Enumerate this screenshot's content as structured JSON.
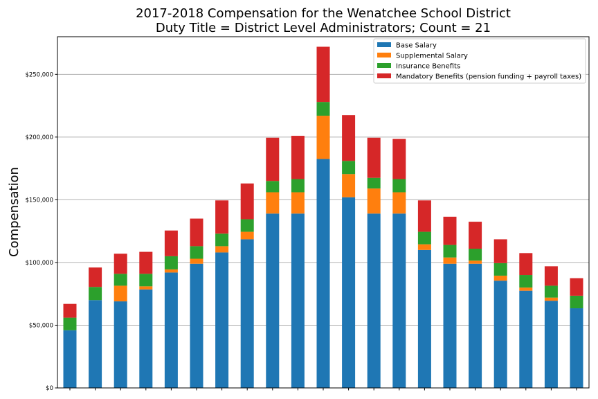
{
  "chart_data": {
    "type": "bar",
    "stacked": true,
    "title": "2017-2018 Compensation for the Wenatchee School District",
    "subtitle": "Duty Title = District Level Administrators; Count = 21",
    "xlabel": "",
    "ylabel": "Compensation",
    "ylim": [
      0,
      280000
    ],
    "yticks": [
      0,
      50000,
      100000,
      150000,
      200000,
      250000
    ],
    "ytick_labels": [
      "$0",
      "$50,000",
      "$100,000",
      "$150,000",
      "$200,000",
      "$250,000"
    ],
    "grid": "horizontal",
    "legend_position": "top-right",
    "categories": [
      "",
      "",
      "",
      "",
      "",
      "",
      "",
      "",
      "",
      "",
      "",
      "",
      "",
      "",
      "",
      "",
      "",
      "",
      "",
      "",
      ""
    ],
    "series": [
      {
        "name": "Base Salary",
        "color": "#1f77b4",
        "values": [
          46000,
          70000,
          69000,
          78500,
          92000,
          99000,
          108000,
          118500,
          139000,
          139000,
          182500,
          152000,
          139000,
          139000,
          110000,
          99000,
          99000,
          85500,
          77500,
          69500,
          63500
        ]
      },
      {
        "name": "Supplemental Salary",
        "color": "#ff7f0e",
        "values": [
          0,
          0,
          12500,
          2500,
          2500,
          4000,
          5000,
          6000,
          17000,
          17000,
          34500,
          18500,
          20000,
          17000,
          4500,
          5000,
          2500,
          4000,
          2500,
          2500,
          0
        ]
      },
      {
        "name": "Insurance Benefits",
        "color": "#2ca02c",
        "values": [
          10000,
          10500,
          9500,
          10000,
          10500,
          10000,
          10000,
          10000,
          9000,
          10500,
          11000,
          10500,
          8500,
          10500,
          10000,
          10000,
          9500,
          10000,
          10000,
          9500,
          10000
        ]
      },
      {
        "name": "Mandatory Benefits (pension funding + payroll taxes)",
        "color": "#d62728",
        "values": [
          11000,
          15500,
          16000,
          17500,
          20500,
          22000,
          26500,
          28500,
          34500,
          34500,
          44000,
          36500,
          32000,
          32000,
          25000,
          22500,
          21500,
          19000,
          17500,
          15500,
          14000
        ]
      }
    ]
  }
}
